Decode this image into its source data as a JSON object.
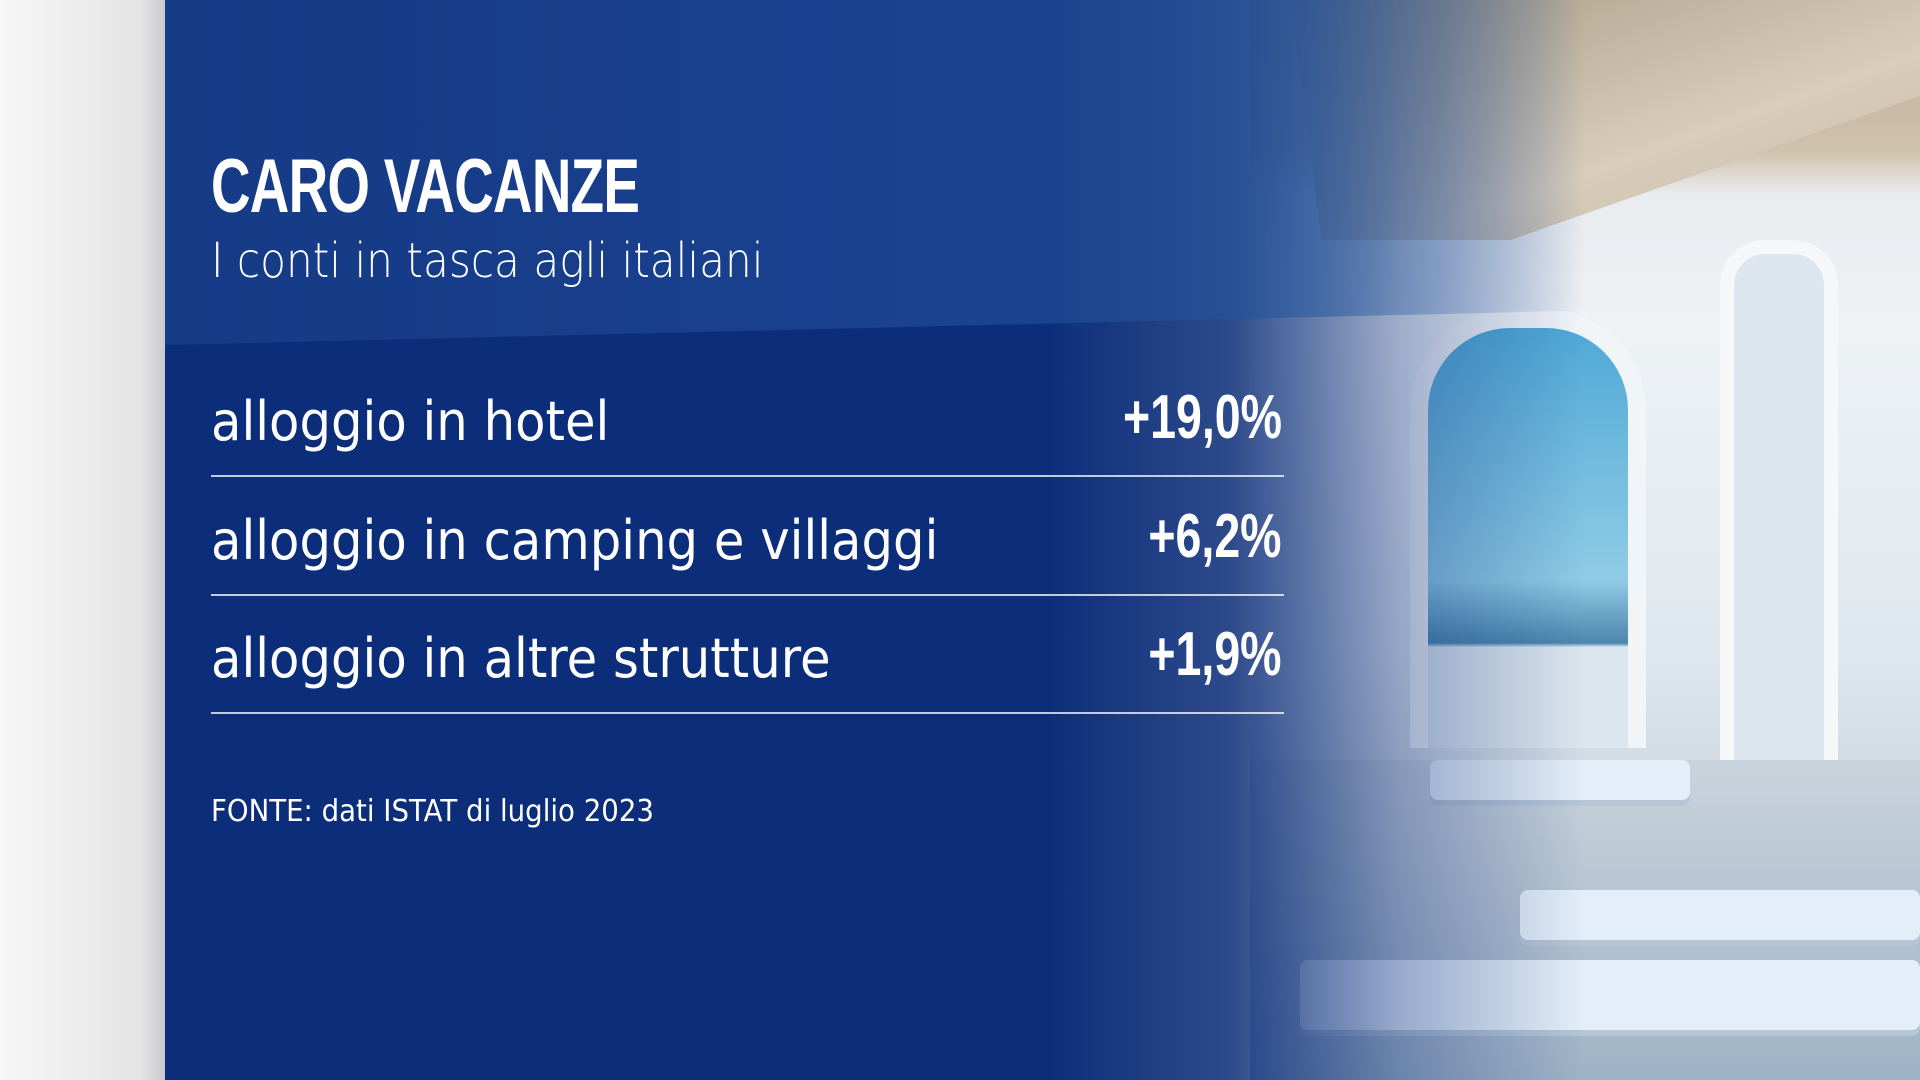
{
  "header": {
    "title": "CARO VACANZE",
    "subtitle": "I conti in tasca agli italiani"
  },
  "rows": [
    {
      "label": "alloggio in hotel",
      "value": "+19,0%"
    },
    {
      "label": "alloggio in camping e villaggi",
      "value": "+6,2%"
    },
    {
      "label": "alloggio in altre strutture",
      "value": "+1,9%"
    }
  ],
  "source": "FONTE: dati ISTAT di luglio 2023",
  "colors": {
    "panel": "#0c2e7a",
    "text": "#ffffff"
  }
}
